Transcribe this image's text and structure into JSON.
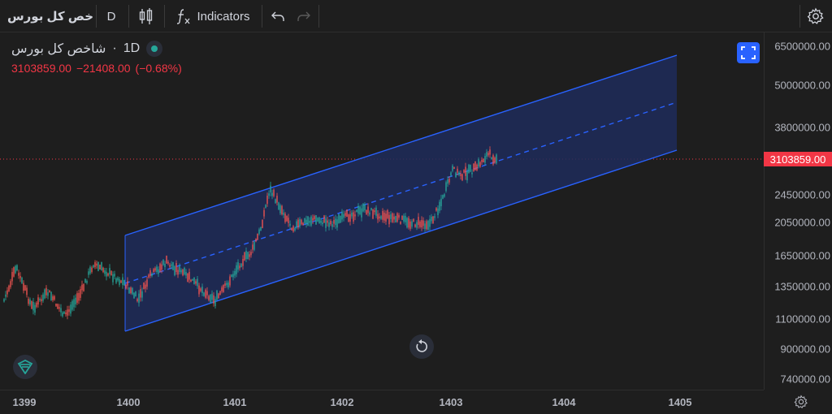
{
  "toolbar": {
    "symbol": "خص کل بورس",
    "interval": "D",
    "indicators_label": "Indicators"
  },
  "legend": {
    "name": "شاخص کل بورس",
    "interval": "1D",
    "price": "3103859.00",
    "change": "−21408.00",
    "change_pct": "(−0.68%)"
  },
  "price_axis": {
    "labels": [
      "6500000.00",
      "5000000.00",
      "3800000.00",
      "2450000.00",
      "2050000.00",
      "1650000.00",
      "1350000.00",
      "1100000.00",
      "900000.00",
      "740000.00"
    ],
    "current": "3103859.00"
  },
  "time_axis": {
    "labels": [
      "1399",
      "1400",
      "1401",
      "1402",
      "1403",
      "1404",
      "1405"
    ]
  },
  "colors": {
    "background": "#1e1e1e",
    "channel_line": "#2962ff",
    "channel_fill": "#1f2c5a",
    "up_candle": "#26a69a",
    "down_candle": "#ef5350",
    "price_tag": "#f23645"
  },
  "icons": [
    "candles-icon",
    "function-icon",
    "undo-icon",
    "redo-icon",
    "settings-icon",
    "fit-screen-icon",
    "reset-icon",
    "logo-icon"
  ]
}
